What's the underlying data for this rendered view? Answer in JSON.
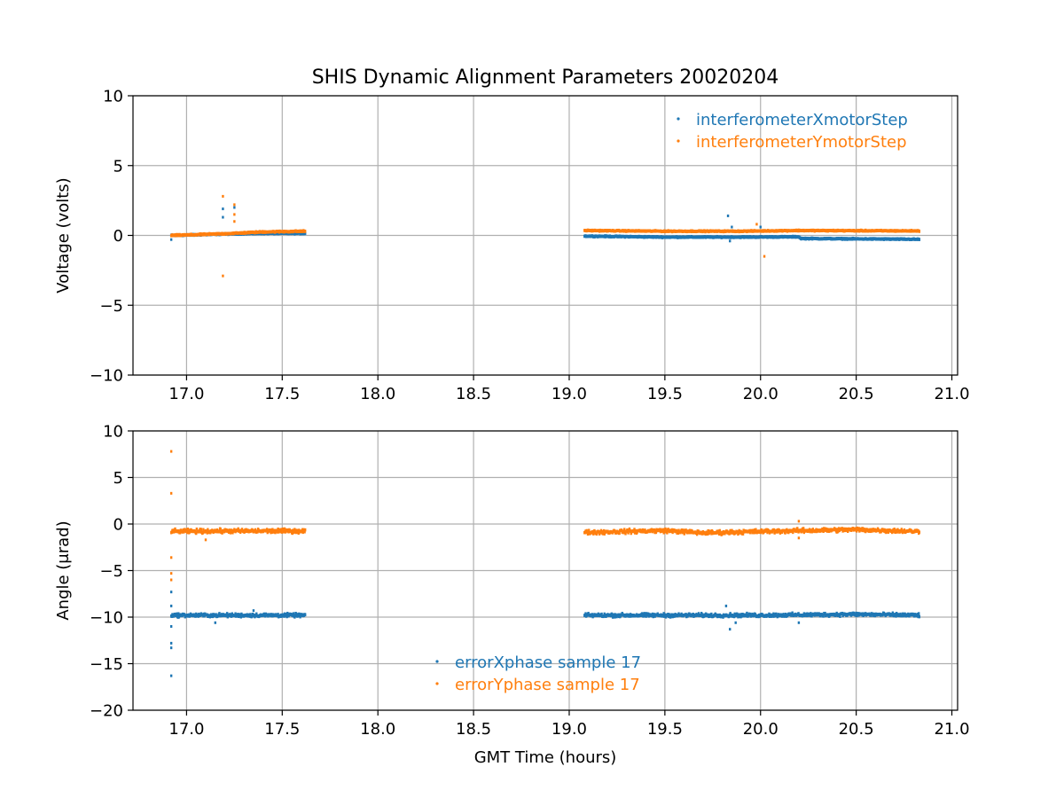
{
  "title": "SHIS Dynamic Alignment Parameters 20020204",
  "colors": {
    "series1": "#1f77b4",
    "series2": "#ff7f0e",
    "grid": "#b0b0b0"
  },
  "chart_data": [
    {
      "type": "scatter",
      "ylabel": "Voltage (volts)",
      "xlabel": "",
      "xlim": [
        16.72,
        21.03
      ],
      "ylim": [
        -10,
        10
      ],
      "x_ticks": [
        17.0,
        17.5,
        18.0,
        18.5,
        19.0,
        19.5,
        20.0,
        20.5,
        21.0
      ],
      "x_tick_labels": [
        "17.0",
        "17.5",
        "18.0",
        "18.5",
        "19.0",
        "19.5",
        "20.0",
        "20.5",
        "21.0"
      ],
      "y_ticks": [
        -10,
        -5,
        0,
        5,
        10
      ],
      "y_tick_labels": [
        "−10",
        "−5",
        "0",
        "5",
        "10"
      ],
      "grid": true,
      "legend_position": "top-right",
      "series": [
        {
          "name": "interferometerXmotorStep",
          "segments": [
            {
              "x": [
                16.92,
                17.0,
                17.2,
                17.4,
                17.62
              ],
              "y": [
                0.0,
                0.02,
                0.1,
                0.15,
                0.15
              ],
              "noise": 0.05
            },
            {
              "x": [
                19.08,
                19.5,
                19.9,
                20.2,
                20.21,
                20.83
              ],
              "y": [
                -0.05,
                -0.12,
                -0.12,
                -0.1,
                -0.22,
                -0.28
              ],
              "noise": 0.05
            }
          ],
          "outliers": [
            [
              17.19,
              1.9
            ],
            [
              17.19,
              1.3
            ],
            [
              17.25,
              2.0
            ],
            [
              19.83,
              1.4
            ],
            [
              19.85,
              0.6
            ],
            [
              19.84,
              -0.4
            ],
            [
              20.0,
              0.6
            ],
            [
              16.92,
              -0.3
            ]
          ]
        },
        {
          "name": "interferometerYmotorStep",
          "segments": [
            {
              "x": [
                16.92,
                17.0,
                17.2,
                17.4,
                17.62
              ],
              "y": [
                0.0,
                0.03,
                0.12,
                0.25,
                0.3
              ],
              "noise": 0.06
            },
            {
              "x": [
                19.08,
                19.5,
                19.9,
                20.2,
                20.83
              ],
              "y": [
                0.35,
                0.3,
                0.3,
                0.35,
                0.32
              ],
              "noise": 0.05
            }
          ],
          "outliers": [
            [
              17.19,
              2.8
            ],
            [
              17.19,
              -2.9
            ],
            [
              17.25,
              2.2
            ],
            [
              17.25,
              1.5
            ],
            [
              17.25,
              1.0
            ],
            [
              20.02,
              -1.5
            ],
            [
              19.98,
              0.8
            ]
          ]
        }
      ]
    },
    {
      "type": "scatter",
      "ylabel": "Angle (μrad)",
      "xlabel": "GMT Time (hours)",
      "xlim": [
        16.72,
        21.03
      ],
      "ylim": [
        -20,
        10
      ],
      "x_ticks": [
        17.0,
        17.5,
        18.0,
        18.5,
        19.0,
        19.5,
        20.0,
        20.5,
        21.0
      ],
      "x_tick_labels": [
        "17.0",
        "17.5",
        "18.0",
        "18.5",
        "19.0",
        "19.5",
        "20.0",
        "20.5",
        "21.0"
      ],
      "y_ticks": [
        -20,
        -15,
        -10,
        -5,
        0,
        5,
        10
      ],
      "y_tick_labels": [
        "−20",
        "−15",
        "−10",
        "−5",
        "0",
        "5",
        "10"
      ],
      "grid": true,
      "legend_position": "lower-center",
      "series": [
        {
          "name": "errorXphase sample 17",
          "segments": [
            {
              "x": [
                16.92,
                17.2,
                17.62
              ],
              "y": [
                -9.8,
                -9.8,
                -9.8
              ],
              "noise": 0.25
            },
            {
              "x": [
                19.08,
                19.5,
                20.0,
                20.5,
                20.83
              ],
              "y": [
                -9.8,
                -9.8,
                -9.8,
                -9.7,
                -9.8
              ],
              "noise": 0.25
            }
          ],
          "outliers": [
            [
              16.92,
              -16.3
            ],
            [
              16.92,
              -13.3
            ],
            [
              16.92,
              -12.8
            ],
            [
              16.92,
              -11.0
            ],
            [
              16.92,
              -8.8
            ],
            [
              16.92,
              -7.3
            ],
            [
              17.35,
              -9.3
            ],
            [
              19.82,
              -8.8
            ],
            [
              19.84,
              -11.3
            ],
            [
              19.87,
              -10.6
            ],
            [
              20.2,
              -10.6
            ],
            [
              17.15,
              -10.6
            ]
          ]
        },
        {
          "name": "errorYphase sample 17",
          "segments": [
            {
              "x": [
                16.92,
                17.2,
                17.62
              ],
              "y": [
                -0.8,
                -0.75,
                -0.75
              ],
              "noise": 0.3
            },
            {
              "x": [
                19.08,
                19.5,
                19.7,
                20.0,
                20.5,
                20.83
              ],
              "y": [
                -0.9,
                -0.7,
                -0.95,
                -0.8,
                -0.6,
                -0.8
              ],
              "noise": 0.3
            }
          ],
          "outliers": [
            [
              16.92,
              7.8
            ],
            [
              16.92,
              3.3
            ],
            [
              16.92,
              -3.6
            ],
            [
              16.92,
              -5.3
            ],
            [
              16.92,
              -6.0
            ],
            [
              20.2,
              0.3
            ],
            [
              20.2,
              -1.5
            ],
            [
              17.1,
              -1.7
            ]
          ]
        }
      ]
    }
  ]
}
